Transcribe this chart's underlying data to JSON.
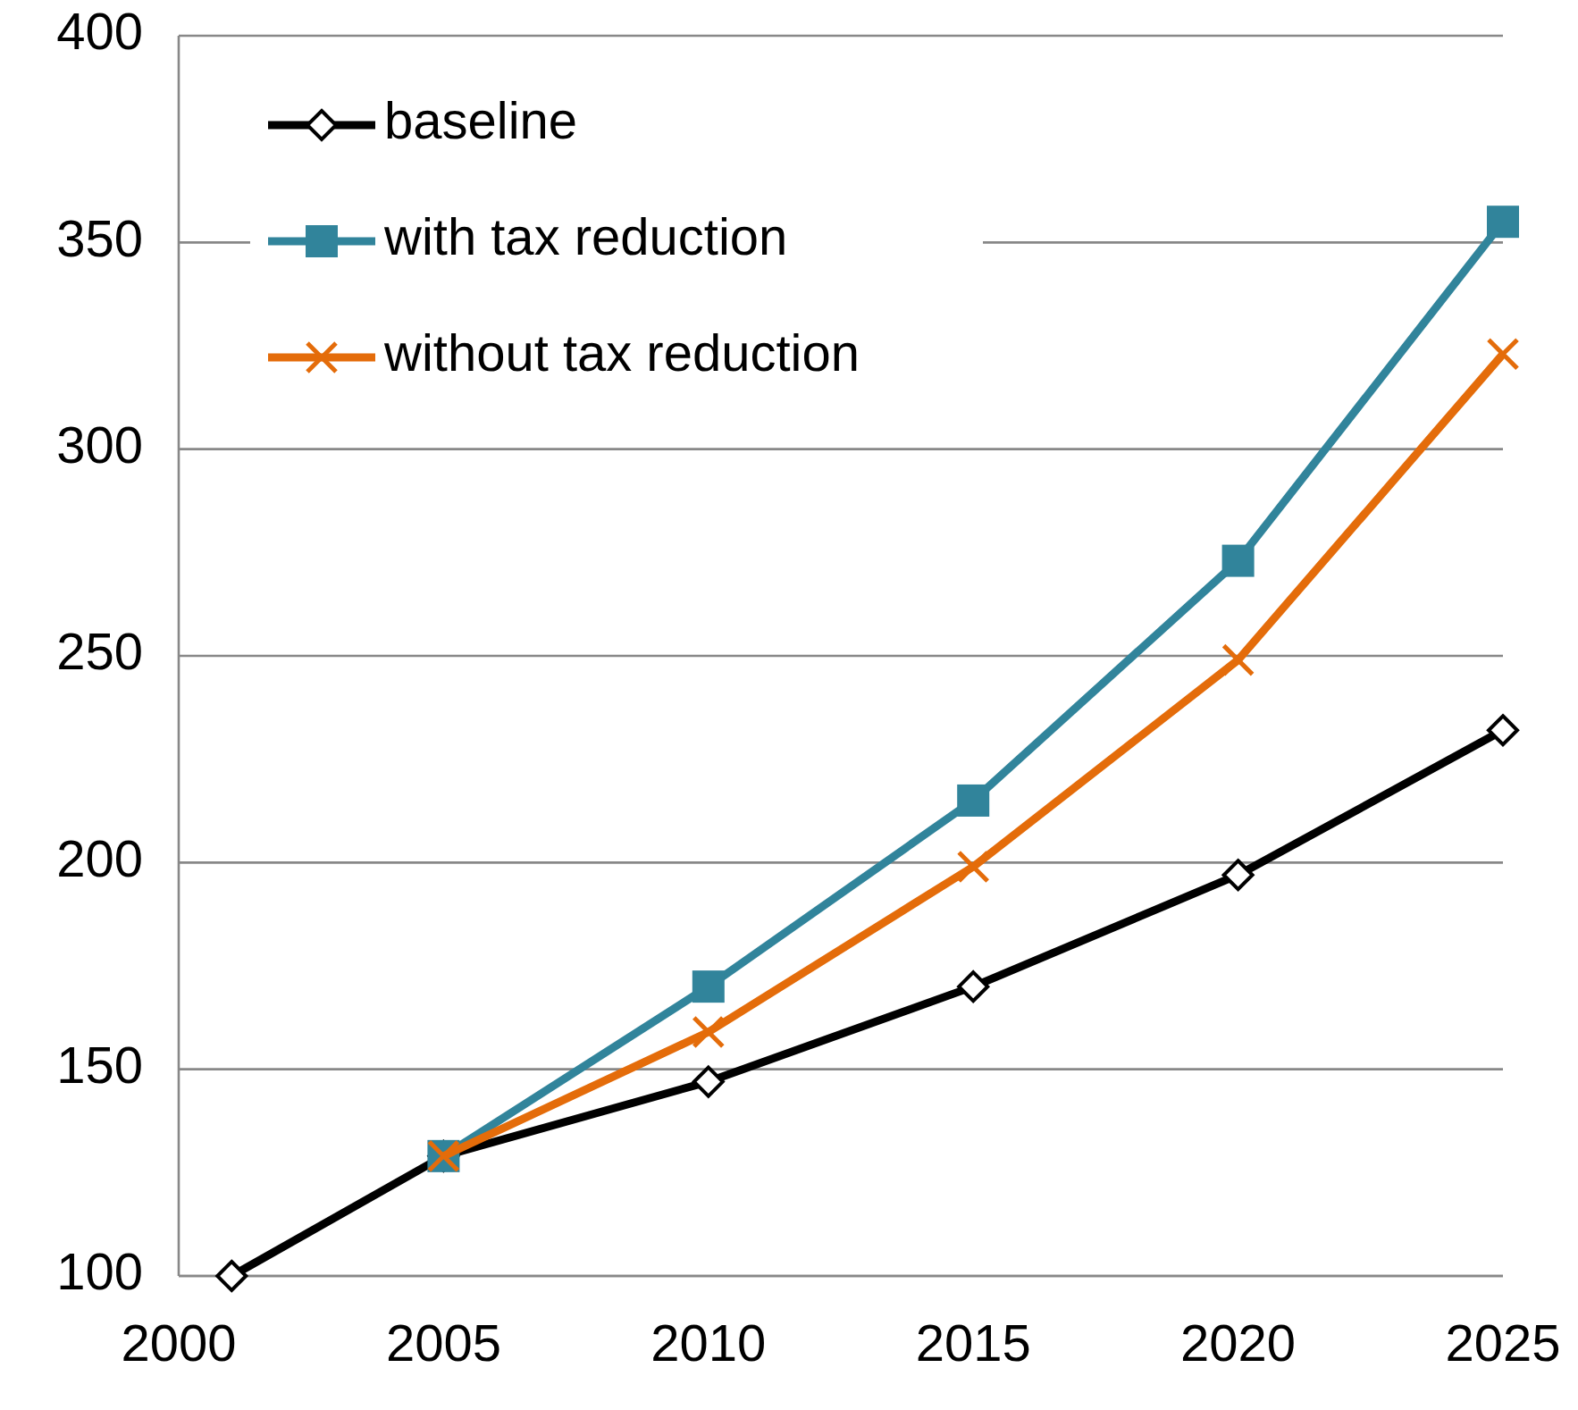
{
  "chart_data": {
    "type": "line",
    "x": [
      2005,
      2010,
      2015,
      2020,
      2025
    ],
    "series": [
      {
        "name": "baseline",
        "color": "#000000",
        "marker": "diamond",
        "x": [
          2001,
          2005,
          2010,
          2015,
          2020,
          2025
        ],
        "values": [
          100,
          129,
          147,
          170,
          197,
          232
        ]
      },
      {
        "name": "with tax reduction",
        "color": "#31849b",
        "marker": "square",
        "values": [
          129,
          170,
          215,
          273,
          355
        ]
      },
      {
        "name": "without tax reduction",
        "color": "#e46c0a",
        "marker": "cross",
        "values": [
          129,
          159,
          199,
          249,
          323
        ]
      }
    ],
    "xlim": [
      2000,
      2025
    ],
    "xticks": [
      2000,
      2005,
      2010,
      2015,
      2020,
      2025
    ],
    "ylim": [
      100,
      400
    ],
    "yticks": [
      100,
      150,
      200,
      250,
      300,
      350,
      400
    ],
    "grid": "y",
    "legend": "top left",
    "line_style": "solid"
  }
}
